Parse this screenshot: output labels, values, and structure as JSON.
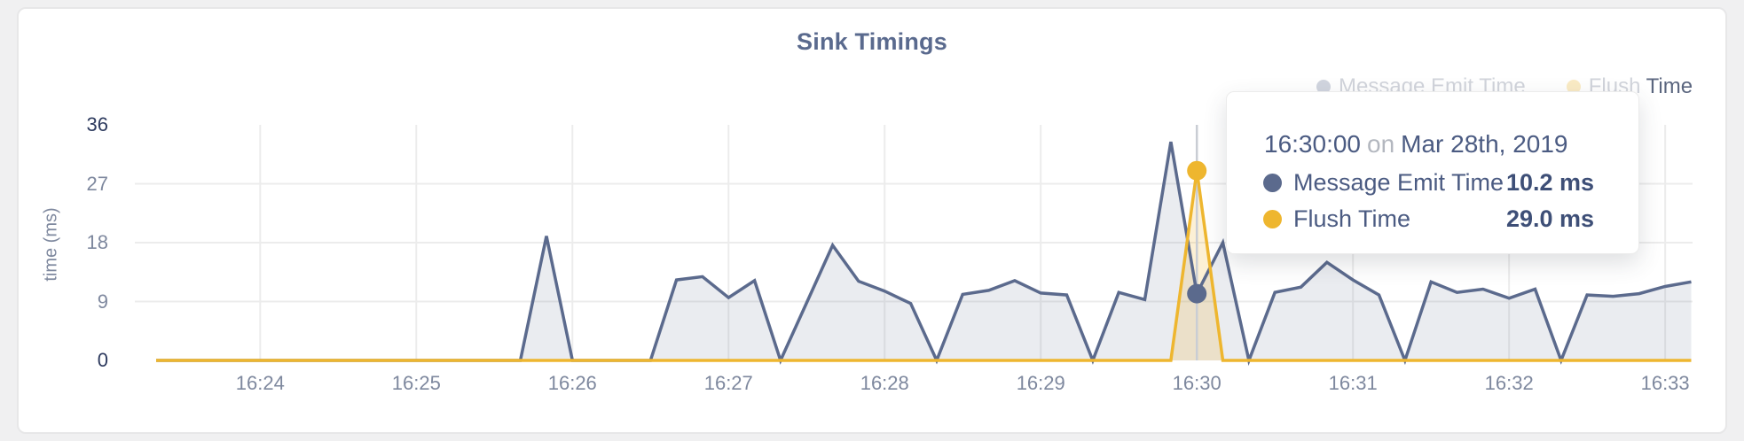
{
  "page": {
    "background": "#f0f0f1"
  },
  "card": {
    "background": "#ffffff",
    "border_color": "#e7e7e8"
  },
  "chart_data": {
    "type": "area",
    "title": "Sink Timings",
    "ylabel": "time (ms)",
    "ylim": [
      0,
      36
    ],
    "y_ticks": [
      0,
      9,
      18,
      27,
      36
    ],
    "x_ticks": [
      "16:24",
      "16:25",
      "16:26",
      "16:27",
      "16:28",
      "16:29",
      "16:30",
      "16:31",
      "16:32",
      "16:33"
    ],
    "x_start": "16:23:20",
    "x_end": "16:33:10",
    "interval_seconds": 10,
    "grid": true,
    "legend_position": "top-right",
    "colors": {
      "gridline": "#ececec",
      "crosshair": "#c9cdd4",
      "tick_dark": "#2d3a5e",
      "tick_light": "#7e889e"
    },
    "series": [
      {
        "name": "Message Emit Time",
        "color": "#5b6a8d",
        "fill": "rgba(91,106,141,0.13)",
        "values": [
          0,
          0,
          0,
          0,
          0,
          0,
          0,
          0,
          0,
          0,
          0,
          0,
          0,
          0,
          0,
          19,
          0,
          0,
          0,
          0,
          12.3,
          12.8,
          9.6,
          12.2,
          0,
          8.8,
          17.6,
          12.1,
          10.6,
          8.7,
          0,
          10.1,
          10.7,
          12.2,
          10.3,
          10,
          0,
          10.4,
          9.3,
          33.4,
          10.2,
          18,
          0,
          10.4,
          11.2,
          15,
          12.3,
          10,
          0,
          12,
          10.4,
          10.9,
          9.5,
          10.9,
          0,
          10,
          9.8,
          10.2,
          11.3,
          12
        ]
      },
      {
        "name": "Flush Time",
        "color": "#eeb62f",
        "fill": "rgba(238,182,47,0.20)",
        "values": [
          0,
          0,
          0,
          0,
          0,
          0,
          0,
          0,
          0,
          0,
          0,
          0,
          0,
          0,
          0,
          0,
          0,
          0,
          0,
          0,
          0,
          0,
          0,
          0,
          0,
          0,
          0,
          0,
          0,
          0,
          0,
          0,
          0,
          0,
          0,
          0,
          0,
          0,
          0,
          0,
          29,
          0,
          0,
          0,
          0,
          0,
          0,
          0,
          0,
          0,
          0,
          0,
          0,
          0,
          0,
          0,
          0,
          0,
          0,
          0
        ]
      }
    ],
    "highlight": {
      "time": "16:30:00",
      "values": [
        10.2,
        29.0
      ]
    }
  },
  "legend": {
    "items": [
      {
        "label": "Message Emit Time",
        "color": "#5b6a8d"
      },
      {
        "label": "Flush Time",
        "color": "#eeb62f"
      }
    ]
  },
  "tooltip": {
    "time": "16:30:00",
    "connector": "on",
    "date": "Mar 28th, 2019",
    "rows": [
      {
        "label": "Message Emit Time",
        "value": "10.2 ms",
        "color": "#5b6a8d"
      },
      {
        "label": "Flush Time",
        "value": "29.0 ms",
        "color": "#eeb62f"
      }
    ]
  }
}
